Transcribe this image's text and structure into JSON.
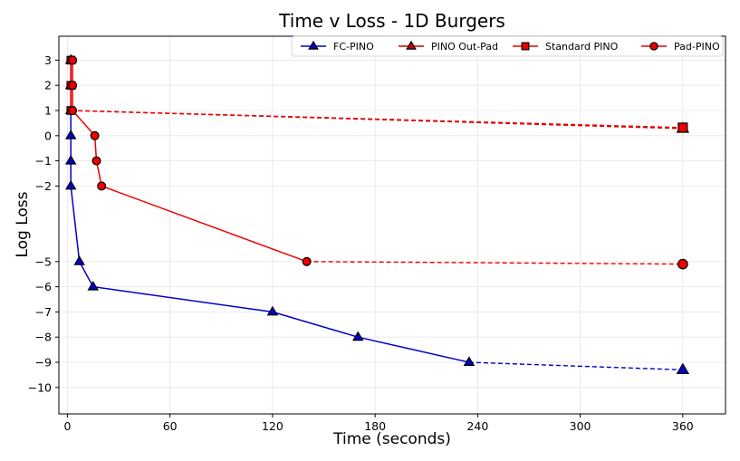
{
  "chart_data": {
    "type": "line",
    "title": "Time v Loss - 1D Burgers",
    "xlabel": "Time (seconds)",
    "ylabel": "Log Loss",
    "xlim": [
      -5,
      385
    ],
    "ylim": [
      -11.05,
      3.95
    ],
    "x_ticks": [
      0,
      60,
      120,
      180,
      240,
      300,
      360
    ],
    "y_ticks": [
      3,
      2,
      1,
      0,
      -1,
      -2,
      -5,
      -6,
      -7,
      -8,
      -9,
      -10
    ],
    "grid": true,
    "legend_position": "top-right",
    "colors": {
      "blue": "#0000cc",
      "red": "#ee0000",
      "dark_red": "#cc0000",
      "grid": "#e6e6e6"
    },
    "series": [
      {
        "name": "FC-PINO",
        "color": "#0000cc",
        "marker": "triangle",
        "solid": [
          {
            "x": 2,
            "y": 3
          },
          {
            "x": 2,
            "y": 2
          },
          {
            "x": 2,
            "y": 1
          },
          {
            "x": 2,
            "y": 0
          },
          {
            "x": 2,
            "y": -1
          },
          {
            "x": 2,
            "y": -2
          },
          {
            "x": 7,
            "y": -5
          },
          {
            "x": 15,
            "y": -6
          },
          {
            "x": 120,
            "y": -7
          },
          {
            "x": 170,
            "y": -8
          },
          {
            "x": 235,
            "y": -9
          }
        ],
        "dashed_to": {
          "x": 360,
          "y": -9.3
        }
      },
      {
        "name": "PINO Out-Pad",
        "color": "#cc0000",
        "marker": "triangle",
        "solid": [
          {
            "x": 2,
            "y": 3
          },
          {
            "x": 2,
            "y": 2
          },
          {
            "x": 2,
            "y": 1
          }
        ],
        "dashed_to": {
          "x": 360,
          "y": 0.28
        }
      },
      {
        "name": "Standard PINO",
        "color": "#ee0000",
        "marker": "square",
        "solid": [
          {
            "x": 2,
            "y": 3
          },
          {
            "x": 2,
            "y": 2
          },
          {
            "x": 2,
            "y": 1
          }
        ],
        "dashed_to": {
          "x": 360,
          "y": 0.32
        }
      },
      {
        "name": "Pad-PINO",
        "color": "#ee0000",
        "marker": "circle",
        "solid": [
          {
            "x": 3,
            "y": 3
          },
          {
            "x": 3,
            "y": 2
          },
          {
            "x": 3,
            "y": 1
          },
          {
            "x": 16,
            "y": 0
          },
          {
            "x": 17,
            "y": -1
          },
          {
            "x": 20,
            "y": -2
          },
          {
            "x": 140,
            "y": -5
          }
        ],
        "dashed_to": {
          "x": 360,
          "y": -5.1
        }
      }
    ]
  }
}
